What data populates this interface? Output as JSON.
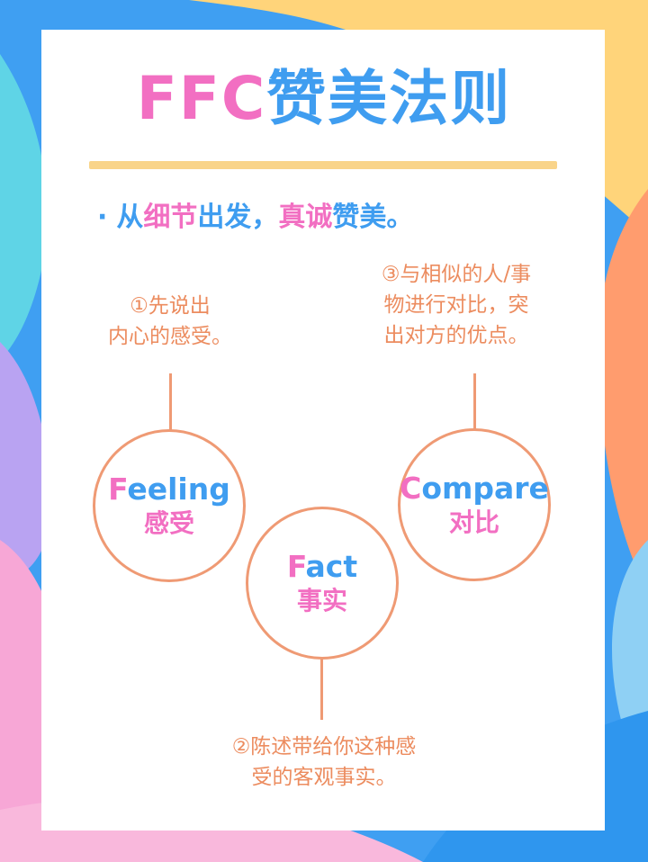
{
  "title": {
    "part1": "FFC",
    "part2": "赞美法则"
  },
  "subtitle": {
    "bullet": "·",
    "segments": [
      {
        "text": "从",
        "color": "blue"
      },
      {
        "text": "细节",
        "color": "pink"
      },
      {
        "text": "出发，",
        "color": "blue"
      },
      {
        "text": "真诚",
        "color": "pink"
      },
      {
        "text": "赞美。",
        "color": "blue"
      }
    ]
  },
  "steps": {
    "feeling": {
      "note_line1": "①先说出",
      "note_line2": "内心的感受。",
      "en_first": "F",
      "en_rest": "eeling",
      "cn": "感受"
    },
    "fact": {
      "note_line1": "②陈述带给你这种感",
      "note_line2": "受的客观事实。",
      "en_first": "F",
      "en_rest": "act",
      "cn": "事实"
    },
    "compare": {
      "note_line1": "③与相似的人/事",
      "note_line2": "物进行对比，突",
      "note_line3": "出对方的优点。",
      "en_first": "C",
      "en_rest": "ompare",
      "cn": "对比"
    }
  },
  "colors": {
    "pink": "#f26fc2",
    "blue": "#3f9df0",
    "orange_text": "#ec8c5f",
    "orange_line": "#ef9a74",
    "rule_yellow": "#f9d48a"
  }
}
